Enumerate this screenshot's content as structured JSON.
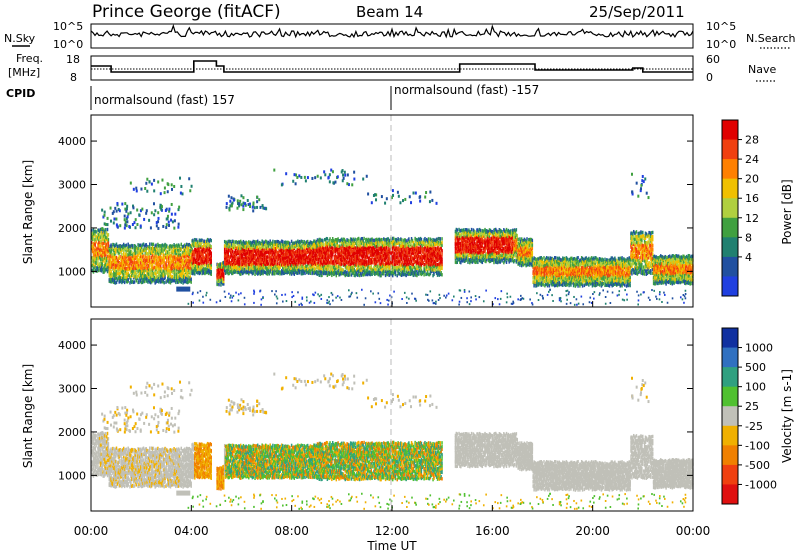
{
  "header": {
    "station": "Prince George (fitACF)",
    "beam": "Beam 14",
    "date": "25/Sep/2011"
  },
  "top_panels": {
    "nsky_label": "N.Sky",
    "nsearch_label": "N.Search",
    "noise_tick_top": "10^5",
    "noise_tick_bottom": "10^0",
    "freq_label_1": "Freq.",
    "freq_label_2": "[MHz]",
    "freq_ticks": [
      "18",
      "8"
    ],
    "nave_label": "Nave",
    "nave_ticks": [
      "60",
      "0"
    ],
    "cpid_label": "CPID",
    "cpid_segments": [
      {
        "label": "normalsound (fast) 157",
        "start_hour": 0
      },
      {
        "label": "normalsound (fast) -157",
        "start_hour": 12
      }
    ]
  },
  "chart_data": [
    {
      "type": "heatmap",
      "name": "power",
      "x_range_hours": [
        0,
        24
      ],
      "ylabel": "Slant Range [km]",
      "ylim": [
        180,
        4600
      ],
      "y_ticks": [
        1000,
        2000,
        3000,
        4000
      ],
      "colorbar": {
        "label": "Power [dB]",
        "ticks": [
          "28",
          "24",
          "20",
          "16",
          "12",
          "8",
          "4"
        ],
        "colors": [
          "#e00000",
          "#f04010",
          "#ff8000",
          "#f0c000",
          "#b0d040",
          "#40a040",
          "#208070",
          "#2050a0",
          "#2040e0"
        ]
      }
    },
    {
      "type": "heatmap",
      "name": "velocity",
      "x_range_hours": [
        0,
        24
      ],
      "ylabel": "Slant Range [km]",
      "ylim": [
        180,
        4600
      ],
      "y_ticks": [
        1000,
        2000,
        3000,
        4000
      ],
      "colorbar": {
        "label": "Velocity [m s-1]",
        "ticks": [
          "1000",
          "500",
          "100",
          "25",
          "-25",
          "-100",
          "-500",
          "-1000"
        ],
        "colors": [
          "#1030a0",
          "#3070c0",
          "#30a080",
          "#50c030",
          "#c0c0b8",
          "#f0b000",
          "#f08000",
          "#f04010",
          "#e01010"
        ]
      }
    }
  ],
  "x_axis": {
    "ticks": [
      "00:00",
      "04:00",
      "08:00",
      "12:00",
      "16:00",
      "20:00",
      "00:00"
    ],
    "label": "Time UT"
  }
}
